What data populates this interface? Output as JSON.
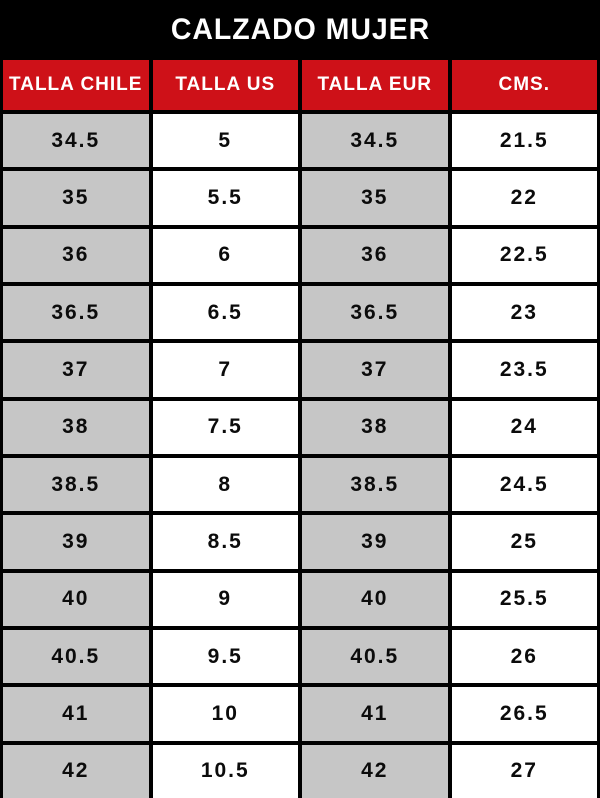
{
  "chart_data": {
    "type": "table",
    "title": "CALZADO MUJER",
    "columns": [
      "TALLA CHILE",
      "TALLA US",
      "TALLA EUR",
      "CMS."
    ],
    "rows": [
      [
        "34.5",
        "5",
        "34.5",
        "21.5"
      ],
      [
        "35",
        "5.5",
        "35",
        "22"
      ],
      [
        "36",
        "6",
        "36",
        "22.5"
      ],
      [
        "36.5",
        "6.5",
        "36.5",
        "23"
      ],
      [
        "37",
        "7",
        "37",
        "23.5"
      ],
      [
        "38",
        "7.5",
        "38",
        "24"
      ],
      [
        "38.5",
        "8",
        "38.5",
        "24.5"
      ],
      [
        "39",
        "8.5",
        "39",
        "25"
      ],
      [
        "40",
        "9",
        "40",
        "25.5"
      ],
      [
        "40.5",
        "9.5",
        "40.5",
        "26"
      ],
      [
        "41",
        "10",
        "41",
        "26.5"
      ],
      [
        "42",
        "10.5",
        "42",
        "27"
      ]
    ],
    "layout": {
      "grid": "4px black gridlines between all cells",
      "column_fills": [
        "gray",
        "white",
        "gray",
        "white"
      ],
      "header_position": "top row below title band"
    }
  },
  "colors": {
    "background": "#000000",
    "header_fill": "#CE1118",
    "header_text_color": "#FFFFFF",
    "title_text_color": "#FFFFFF",
    "gray_column_fill": "#C6C6C6",
    "white_column_fill": "#FFFFFF",
    "cell_text_color": "#0B0B0B"
  }
}
